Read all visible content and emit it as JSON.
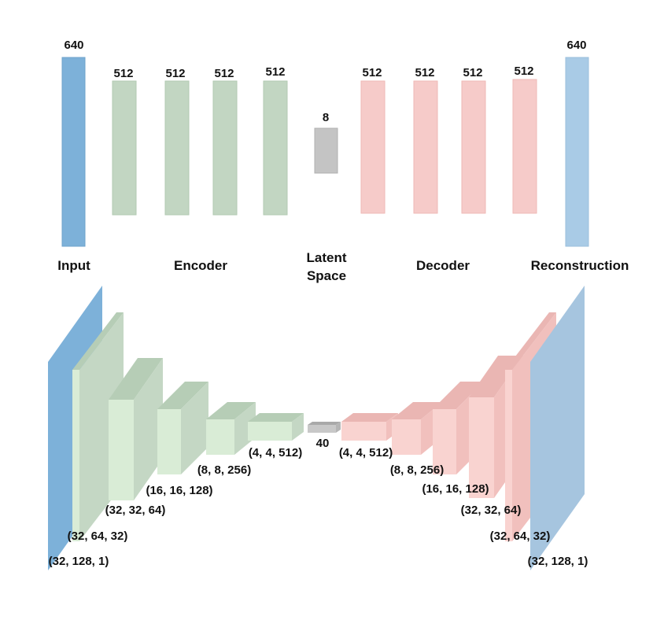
{
  "colors": {
    "input": "#7db1d9",
    "encoder": "#c2d6c2",
    "latent": "#c4c4c4",
    "decoder": "#f6cbc9",
    "reconstruction": "#a9cbe6"
  },
  "dense": {
    "input": "640",
    "encoder": [
      "512",
      "512",
      "512",
      "512"
    ],
    "latent": "8",
    "decoder": [
      "512",
      "512",
      "512",
      "512"
    ],
    "output": "640"
  },
  "sections": {
    "input": "Input",
    "encoder": "Encoder",
    "latent_line1": "Latent",
    "latent_line2": "Space",
    "decoder": "Decoder",
    "reconstruction": "Reconstruction"
  },
  "conv": {
    "encoder": [
      "(32, 128, 1)",
      "(32, 64, 32)",
      "(32, 32, 64)",
      "(16, 16, 128)",
      "(8, 8, 256)",
      "(4, 4, 512)"
    ],
    "latent": "40",
    "decoder": [
      "(4, 4, 512)",
      "(8, 8, 256)",
      "(16, 16, 128)",
      "(32, 32, 64)",
      "(32, 64, 32)",
      "(32, 128, 1)"
    ]
  }
}
